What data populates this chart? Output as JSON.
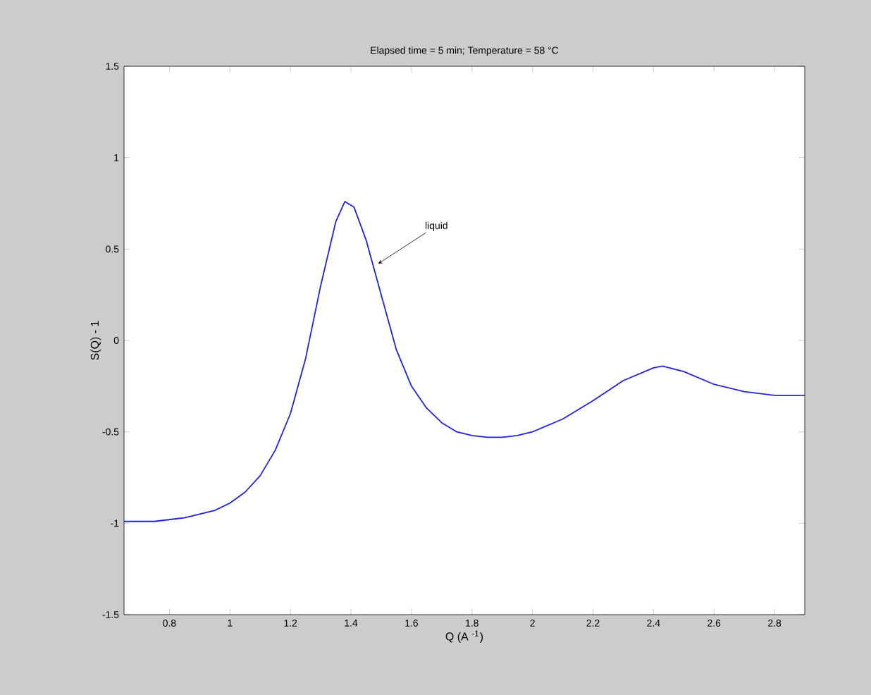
{
  "chart_data": {
    "type": "line",
    "title": "Elapsed time = 5 min; Temperature = 58 °C",
    "xlabel": "Q (A $^{-1}$)",
    "ylabel": "S(Q) - 1",
    "xlim": [
      0.65,
      2.9
    ],
    "ylim": [
      -1.5,
      1.5
    ],
    "xticks": [
      0.8,
      1,
      1.2,
      1.4,
      1.6,
      1.8,
      2,
      2.2,
      2.4,
      2.6,
      2.8
    ],
    "yticks": [
      -1.5,
      -1,
      -0.5,
      0,
      0.5,
      1,
      1.5
    ],
    "grid": false,
    "marker": "none",
    "line_style": "solid",
    "annotations": [
      {
        "text": "liquid",
        "x": 1.49,
        "y": 0.42
      }
    ],
    "series": [
      {
        "color": "#2020e0",
        "x": [
          0.65,
          0.75,
          0.85,
          0.95,
          1.0,
          1.05,
          1.1,
          1.15,
          1.2,
          1.25,
          1.3,
          1.35,
          1.38,
          1.41,
          1.45,
          1.5,
          1.55,
          1.6,
          1.65,
          1.7,
          1.75,
          1.8,
          1.85,
          1.9,
          1.95,
          2.0,
          2.1,
          2.2,
          2.3,
          2.4,
          2.43,
          2.5,
          2.6,
          2.7,
          2.8,
          2.9
        ],
        "values": [
          -0.99,
          -0.99,
          -0.97,
          -0.93,
          -0.89,
          -0.83,
          -0.74,
          -0.6,
          -0.4,
          -0.1,
          0.3,
          0.65,
          0.76,
          0.73,
          0.55,
          0.25,
          -0.05,
          -0.25,
          -0.37,
          -0.45,
          -0.5,
          -0.52,
          -0.53,
          -0.53,
          -0.52,
          -0.5,
          -0.43,
          -0.33,
          -0.22,
          -0.15,
          -0.14,
          -0.17,
          -0.24,
          -0.28,
          -0.3,
          -0.3
        ]
      }
    ]
  }
}
